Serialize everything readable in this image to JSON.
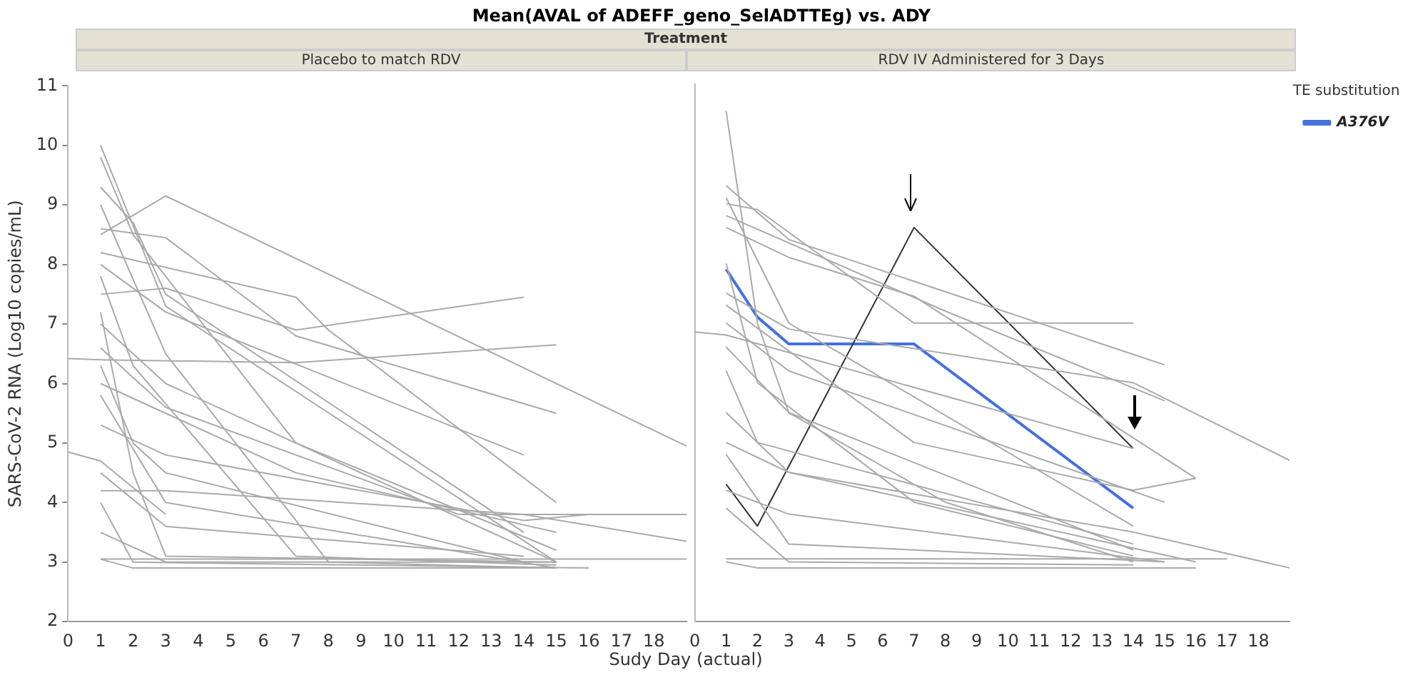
{
  "chart_data": [
    {
      "type": "line",
      "title": "Placebo to match RDV",
      "annotations": [
        "Mean(AVAL of ADEFF_geno_SelADTTEg) vs. ADY",
        "Treatment"
      ],
      "xlabel": "Sudy Day (actual)",
      "ylabel": "SARS-CoV-2 RNA (Log10 copies/mL)",
      "xlim": [
        0,
        19
      ],
      "xticks": [
        0,
        1,
        2,
        3,
        4,
        5,
        6,
        7,
        8,
        9,
        10,
        11,
        12,
        13,
        14,
        15,
        16,
        17,
        18
      ],
      "ylim": [
        2,
        11
      ],
      "yticks": [
        2,
        3,
        4,
        5,
        6,
        7,
        8,
        9,
        10,
        11
      ],
      "grid": false,
      "legend": false,
      "marker": "none",
      "series": [
        {
          "color": "#aaaaaa",
          "x": [
            1,
            3,
            15
          ],
          "values": [
            10,
            7.3,
            3
          ]
        },
        {
          "color": "#aaaaaa",
          "x": [
            1,
            2,
            7,
            15
          ],
          "values": [
            9.8,
            8.5,
            5,
            3.2
          ]
        },
        {
          "color": "#aaaaaa",
          "x": [
            1,
            2,
            3,
            14
          ],
          "values": [
            9.3,
            8.7,
            7.5,
            3.5
          ]
        },
        {
          "color": "#aaaaaa",
          "x": [
            1,
            3,
            19
          ],
          "values": [
            8.5,
            9.15,
            4.95
          ]
        },
        {
          "color": "#aaaaaa",
          "x": [
            1,
            3,
            7,
            15
          ],
          "values": [
            8.6,
            8.45,
            6.8,
            5.5
          ]
        },
        {
          "color": "#aaaaaa",
          "x": [
            1,
            3,
            7,
            14
          ],
          "values": [
            7.5,
            7.6,
            6.9,
            7.45
          ]
        },
        {
          "color": "#aaaaaa",
          "x": [
            0,
            1,
            7,
            15
          ],
          "values": [
            6.42,
            6.4,
            6.35,
            6.65
          ]
        },
        {
          "color": "#aaaaaa",
          "x": [
            1,
            7,
            8,
            15
          ],
          "values": [
            8.2,
            7.45,
            6.9,
            4
          ]
        },
        {
          "color": "#aaaaaa",
          "x": [
            1,
            3,
            15
          ],
          "values": [
            7,
            6,
            3
          ]
        },
        {
          "color": "#aaaaaa",
          "x": [
            1,
            2,
            3,
            14
          ],
          "values": [
            6.3,
            5,
            4.5,
            3
          ]
        },
        {
          "color": "#aaaaaa",
          "x": [
            1,
            3,
            15
          ],
          "values": [
            5.8,
            4,
            2.9
          ]
        },
        {
          "color": "#aaaaaa",
          "x": [
            1,
            2,
            16
          ],
          "values": [
            4,
            3,
            2.9
          ]
        },
        {
          "color": "#aaaaaa",
          "x": [
            1,
            2,
            15
          ],
          "values": [
            3.05,
            2.9,
            2.9
          ]
        },
        {
          "color": "#aaaaaa",
          "x": [
            1,
            18,
            19
          ],
          "values": [
            3.05,
            3.05,
            3.05
          ]
        },
        {
          "color": "#aaaaaa",
          "x": [
            1,
            3,
            14,
            19
          ],
          "values": [
            4.2,
            4.2,
            3.8,
            3.35
          ]
        },
        {
          "color": "#aaaaaa",
          "x": [
            1,
            3,
            7,
            15
          ],
          "values": [
            6,
            5.5,
            4.5,
            3.5
          ]
        },
        {
          "color": "#aaaaaa",
          "x": [
            1,
            3,
            8,
            15
          ],
          "values": [
            9,
            6.5,
            3,
            2.9
          ]
        },
        {
          "color": "#aaaaaa",
          "x": [
            1,
            2,
            7,
            15
          ],
          "values": [
            7.8,
            6.3,
            3.1,
            2.95
          ]
        },
        {
          "color": "#aaaaaa",
          "x": [
            1,
            3,
            12,
            19
          ],
          "values": [
            6.6,
            5.6,
            3.8,
            3.8
          ]
        },
        {
          "color": "#aaaaaa",
          "x": [
            1,
            3,
            14,
            16
          ],
          "values": [
            5.3,
            4.8,
            3.7,
            3.8
          ]
        },
        {
          "color": "#aaaaaa",
          "x": [
            1,
            3,
            14
          ],
          "values": [
            8,
            7.2,
            4.8
          ]
        },
        {
          "color": "#aaaaaa",
          "x": [
            1,
            3,
            14
          ],
          "values": [
            4.5,
            3.6,
            3.1
          ]
        },
        {
          "color": "#aaaaaa",
          "x": [
            1,
            3,
            15
          ],
          "values": [
            3.5,
            3,
            3
          ]
        },
        {
          "color": "#aaaaaa",
          "x": [
            1,
            2,
            3,
            15
          ],
          "values": [
            7.2,
            4.5,
            3.1,
            3
          ]
        },
        {
          "color": "#aaaaaa",
          "x": [
            0,
            1,
            3
          ],
          "values": [
            4.85,
            4.7,
            3.8
          ]
        }
      ]
    },
    {
      "type": "line",
      "title": "RDV IV Administered for 3 Days",
      "legend_title": "TE substitution",
      "xlim": [
        0,
        19
      ],
      "xticks": [
        0,
        1,
        2,
        3,
        4,
        5,
        6,
        7,
        8,
        9,
        10,
        11,
        12,
        13,
        14,
        15,
        16,
        17,
        18
      ],
      "ylim": [
        2,
        11
      ],
      "yticks": [
        2,
        3,
        4,
        5,
        6,
        7,
        8,
        9,
        10,
        11
      ],
      "grid": false,
      "legend": "right",
      "marker": "none",
      "tick_labels": "x",
      "series": [
        {
          "color": "#aaaaaa",
          "x": [
            1,
            2,
            3,
            14
          ],
          "values": [
            10.55,
            7,
            5.5,
            3.2
          ]
        },
        {
          "color": "#aaaaaa",
          "x": [
            1,
            3,
            15
          ],
          "values": [
            9.3,
            8.4,
            6.3
          ]
        },
        {
          "color": "#aaaaaa",
          "x": [
            1,
            2,
            7,
            14
          ],
          "values": [
            9,
            8.9,
            7,
            7
          ]
        },
        {
          "color": "#aaaaaa",
          "x": [
            1,
            3,
            7,
            16
          ],
          "values": [
            8.6,
            8.1,
            7.45,
            4.4
          ]
        },
        {
          "color": "#aaaaaa",
          "x": [
            1,
            8,
            15
          ],
          "values": [
            8.8,
            7.2,
            5.7
          ]
        },
        {
          "color": "#aaaaaa",
          "x": [
            0,
            1,
            14
          ],
          "values": [
            6.85,
            6.8,
            4.9
          ]
        },
        {
          "color": "#aaaaaa",
          "x": [
            1,
            3,
            14,
            19
          ],
          "values": [
            7.5,
            6.9,
            6,
            4.7
          ]
        },
        {
          "color": "#aaaaaa",
          "x": [
            1,
            3,
            15
          ],
          "values": [
            7,
            6.2,
            4
          ]
        },
        {
          "color": "#aaaaaa",
          "x": [
            1,
            2,
            14
          ],
          "values": [
            6.2,
            5,
            3.3
          ]
        },
        {
          "color": "#aaaaaa",
          "x": [
            1,
            3,
            16
          ],
          "values": [
            5.5,
            4.5,
            3
          ]
        },
        {
          "color": "#aaaaaa",
          "x": [
            1,
            3,
            15
          ],
          "values": [
            4.2,
            3.8,
            3
          ]
        },
        {
          "color": "#aaaaaa",
          "x": [
            1,
            2,
            16
          ],
          "values": [
            3,
            2.9,
            2.9
          ]
        },
        {
          "color": "#aaaaaa",
          "x": [
            1,
            17
          ],
          "values": [
            3.05,
            3.05
          ]
        },
        {
          "color": "#aaaaaa",
          "x": [
            1,
            3,
            14,
            19
          ],
          "values": [
            5,
            4.5,
            3.5,
            2.9
          ]
        },
        {
          "color": "#aaaaaa",
          "x": [
            1,
            2,
            7,
            14
          ],
          "values": [
            8,
            6,
            4,
            3.1
          ]
        },
        {
          "color": "#aaaaaa",
          "x": [
            1,
            3,
            14
          ],
          "values": [
            9.1,
            7,
            3.6
          ]
        },
        {
          "color": "#aaaaaa",
          "x": [
            1,
            3,
            8,
            14
          ],
          "values": [
            6.6,
            5.5,
            4,
            3
          ]
        },
        {
          "color": "#aaaaaa",
          "x": [
            1,
            3,
            15
          ],
          "values": [
            4.8,
            3.3,
            3
          ]
        },
        {
          "color": "#aaaaaa",
          "x": [
            1,
            7,
            14,
            16
          ],
          "values": [
            7.3,
            5,
            4.2,
            4.4
          ]
        },
        {
          "color": "#aaaaaa",
          "x": [
            1,
            3,
            14
          ],
          "values": [
            3.9,
            3,
            2.95
          ]
        },
        {
          "color": "#333333",
          "x": [
            1,
            2,
            7,
            14
          ],
          "values": [
            4.3,
            3.6,
            8.6,
            4.9
          ]
        },
        {
          "name": "A376V",
          "color": "#4472dd",
          "x": [
            1,
            2,
            3,
            7,
            14
          ],
          "values": [
            7.9,
            7.1,
            6.65,
            6.65,
            3.9
          ]
        }
      ]
    }
  ]
}
